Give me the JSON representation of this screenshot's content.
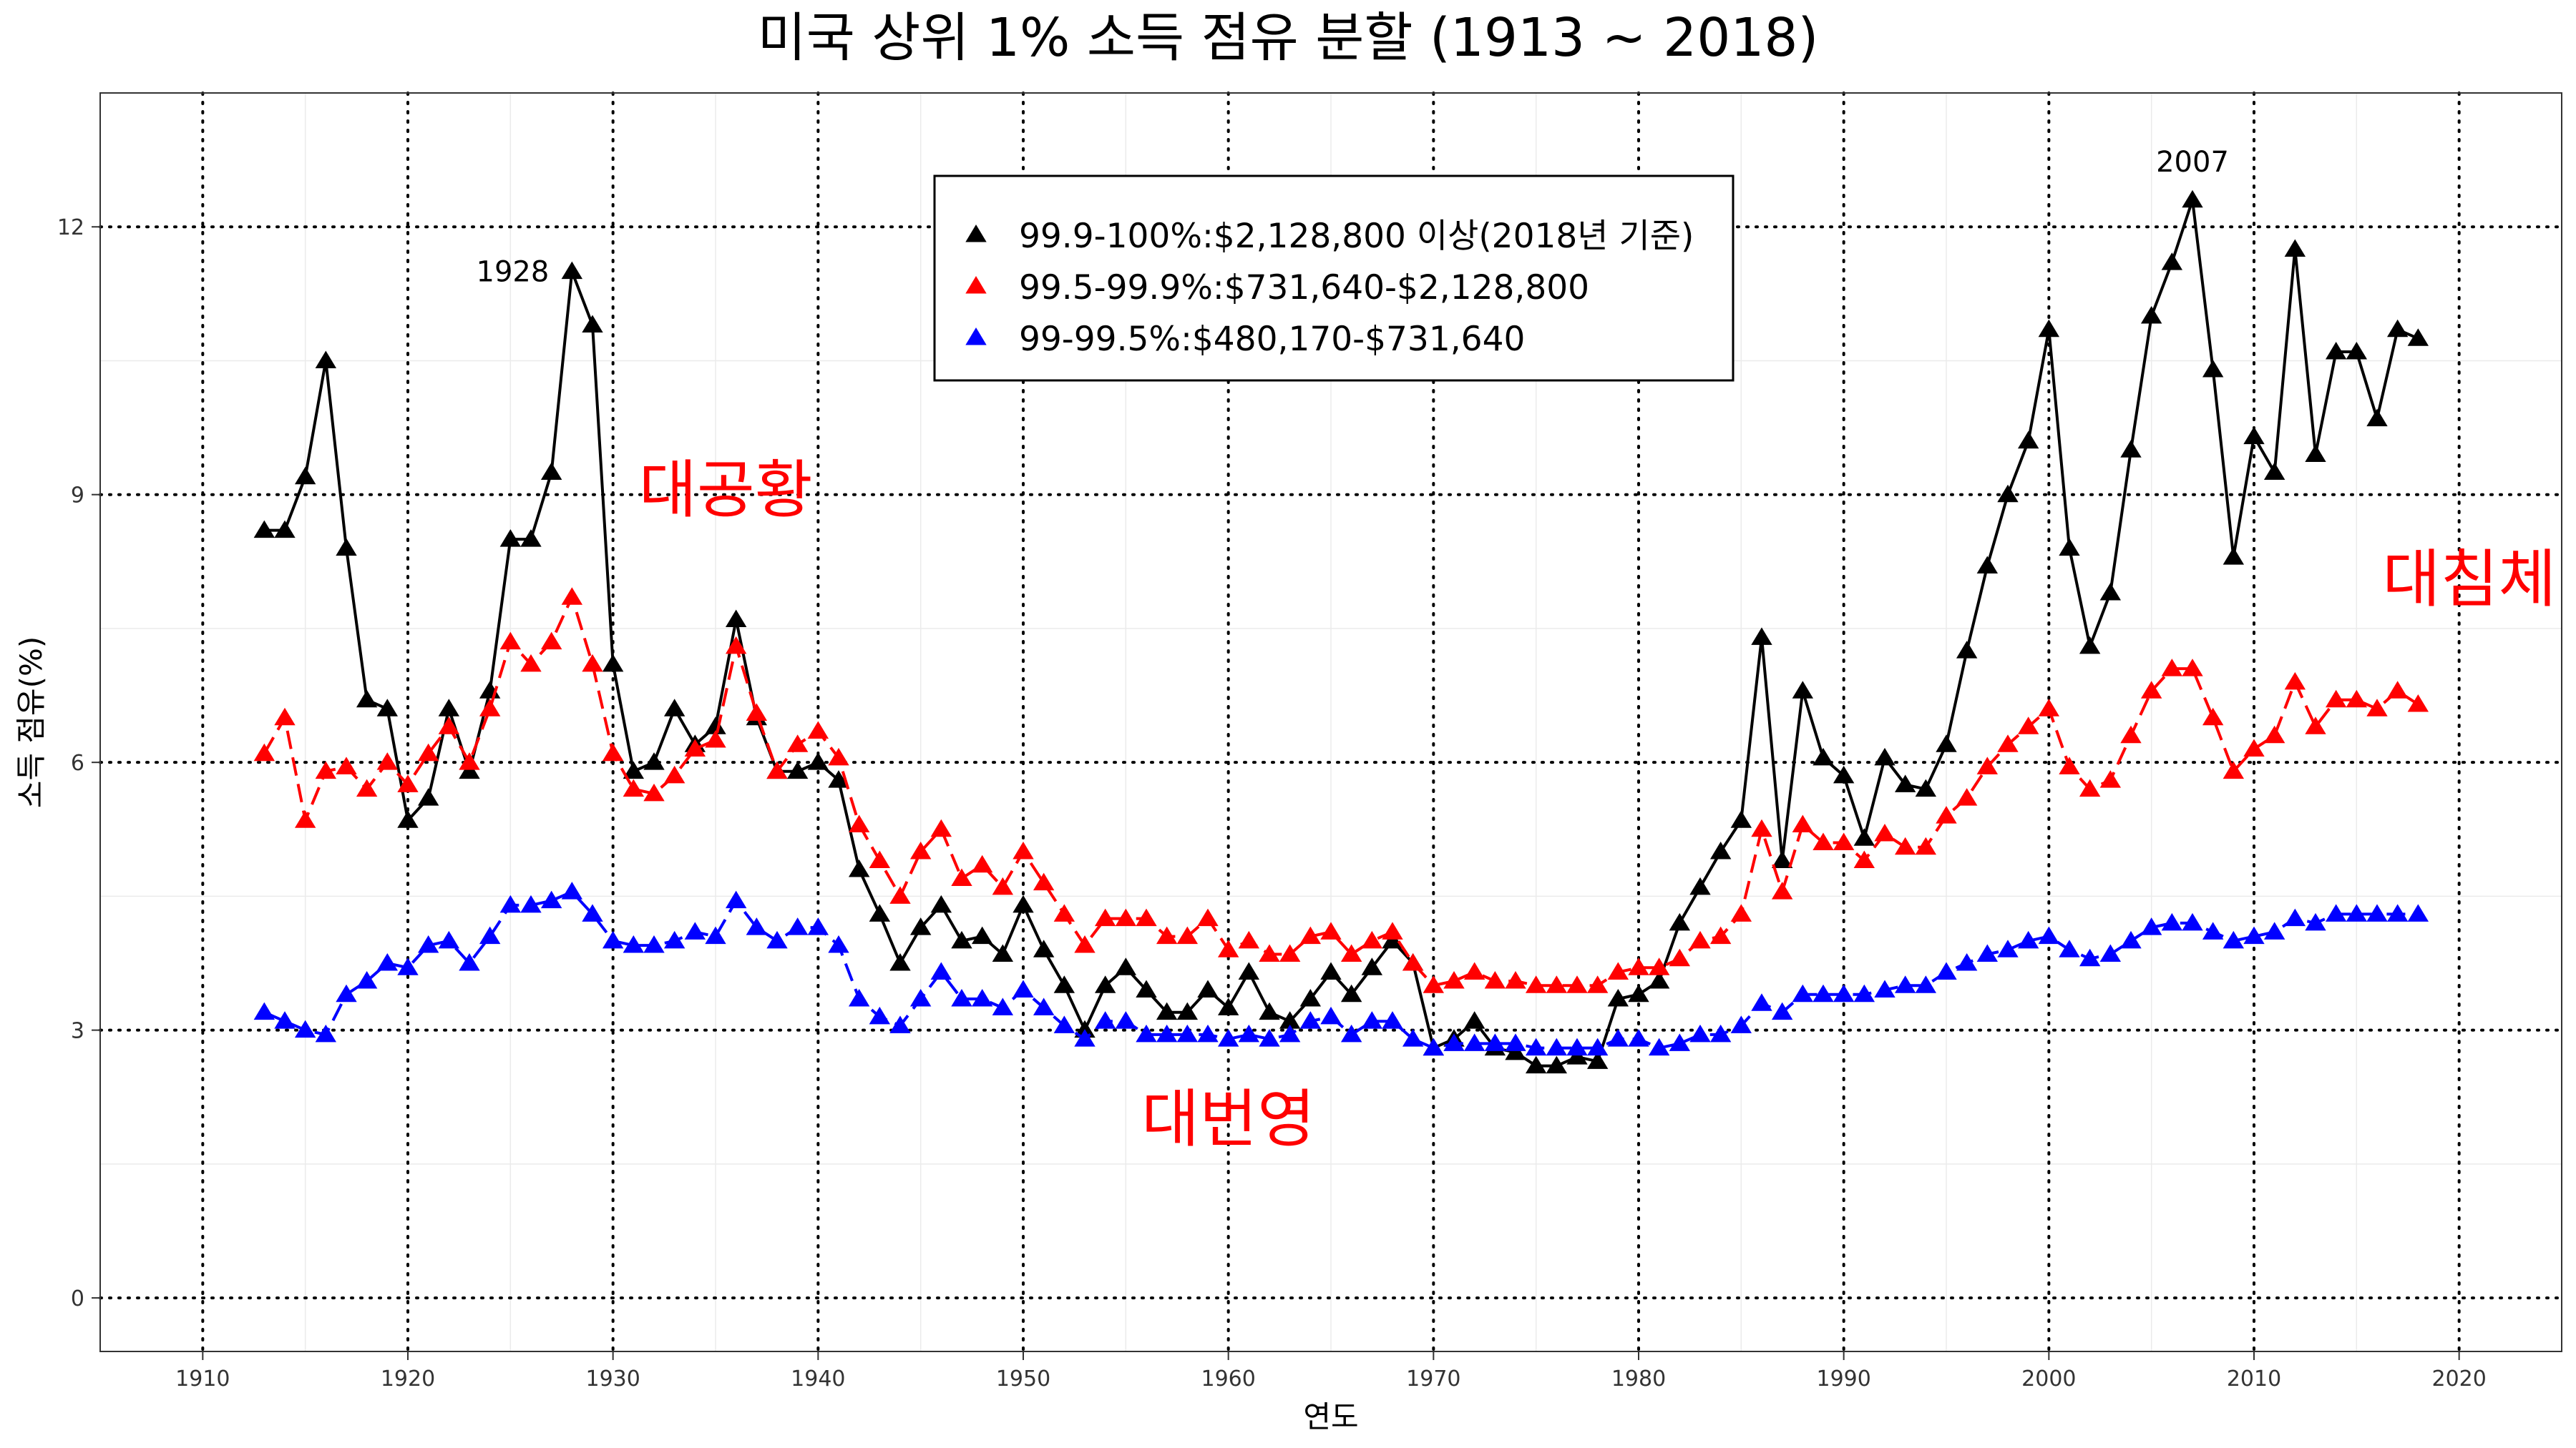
{
  "chart_data": {
    "type": "line",
    "title": "미국 상위 1% 소득 점유 분할 (1913 ~ 2018)",
    "xlabel": "연도",
    "ylabel": "소득 점유(%)",
    "xlim": [
      1905,
      2025
    ],
    "ylim": [
      -0.6,
      13.5
    ],
    "xticks": [
      1910,
      1920,
      1930,
      1940,
      1950,
      1960,
      1970,
      1980,
      1990,
      2000,
      2010,
      2020
    ],
    "yticks": [
      0,
      3,
      6,
      9,
      12
    ],
    "grid": true,
    "legend_position": "top-center",
    "x": [
      1913,
      1914,
      1915,
      1916,
      1917,
      1918,
      1919,
      1920,
      1921,
      1922,
      1923,
      1924,
      1925,
      1926,
      1927,
      1928,
      1929,
      1930,
      1931,
      1932,
      1933,
      1934,
      1935,
      1936,
      1937,
      1938,
      1939,
      1940,
      1941,
      1942,
      1943,
      1944,
      1945,
      1946,
      1947,
      1948,
      1949,
      1950,
      1951,
      1952,
      1953,
      1954,
      1955,
      1956,
      1957,
      1958,
      1959,
      1960,
      1961,
      1962,
      1963,
      1964,
      1965,
      1966,
      1967,
      1968,
      1969,
      1970,
      1971,
      1972,
      1973,
      1974,
      1975,
      1976,
      1977,
      1978,
      1979,
      1980,
      1981,
      1982,
      1983,
      1984,
      1985,
      1986,
      1987,
      1988,
      1989,
      1990,
      1991,
      1992,
      1993,
      1994,
      1995,
      1996,
      1997,
      1998,
      1999,
      2000,
      2001,
      2002,
      2003,
      2004,
      2005,
      2006,
      2007,
      2008,
      2009,
      2010,
      2011,
      2012,
      2013,
      2014,
      2015,
      2016,
      2017,
      2018
    ],
    "series": [
      {
        "name": "99.9-100%:$2,128,800 이상(2018년 기준)",
        "color": "#000000",
        "dash": "solid",
        "values": [
          8.6,
          8.6,
          9.2,
          10.5,
          8.4,
          6.7,
          6.6,
          5.35,
          5.6,
          6.6,
          5.9,
          6.8,
          8.5,
          8.5,
          9.25,
          11.5,
          10.9,
          7.1,
          5.9,
          6.0,
          6.6,
          6.2,
          6.4,
          7.6,
          6.5,
          5.9,
          5.9,
          6.0,
          5.8,
          4.8,
          4.3,
          3.75,
          4.15,
          4.4,
          4.0,
          4.05,
          3.85,
          4.4,
          3.9,
          3.5,
          3.0,
          3.5,
          3.7,
          3.45,
          3.2,
          3.2,
          3.45,
          3.25,
          3.65,
          3.2,
          3.1,
          3.35,
          3.65,
          3.4,
          3.7,
          4.0,
          3.75,
          2.8,
          2.9,
          3.1,
          2.8,
          2.75,
          2.6,
          2.6,
          2.7,
          2.65,
          3.35,
          3.4,
          3.55,
          4.2,
          4.6,
          5.0,
          5.35,
          7.4,
          4.9,
          6.8,
          6.05,
          5.85,
          5.15,
          6.05,
          5.75,
          5.7,
          6.2,
          7.25,
          8.2,
          9.0,
          9.6,
          10.85,
          8.4,
          7.3,
          7.9,
          9.5,
          11.0,
          11.6,
          12.3,
          10.4,
          8.3,
          9.65,
          9.25,
          11.75,
          9.45,
          10.6,
          10.6,
          9.85,
          10.85,
          10.75
        ]
      },
      {
        "name": "99.5-99.9%:$731,640-$2,128,800",
        "color": "#ff0000",
        "dash": "dashed",
        "values": [
          6.1,
          6.5,
          5.35,
          5.9,
          5.95,
          5.7,
          6.0,
          5.75,
          6.1,
          6.4,
          6.0,
          6.6,
          7.35,
          7.1,
          7.35,
          7.85,
          7.1,
          6.1,
          5.7,
          5.65,
          5.85,
          6.15,
          6.25,
          7.3,
          6.55,
          5.9,
          6.2,
          6.35,
          6.05,
          5.3,
          4.9,
          4.5,
          5.0,
          5.25,
          4.7,
          4.85,
          4.6,
          5.0,
          4.65,
          4.3,
          3.95,
          4.25,
          4.25,
          4.25,
          4.05,
          4.05,
          4.25,
          3.9,
          4.0,
          3.85,
          3.85,
          4.05,
          4.1,
          3.85,
          4.0,
          4.1,
          3.75,
          3.5,
          3.55,
          3.65,
          3.55,
          3.55,
          3.5,
          3.5,
          3.5,
          3.5,
          3.65,
          3.7,
          3.7,
          3.8,
          4.0,
          4.05,
          4.3,
          5.25,
          4.55,
          5.3,
          5.1,
          5.1,
          4.9,
          5.2,
          5.05,
          5.05,
          5.4,
          5.6,
          5.95,
          6.2,
          6.4,
          6.6,
          5.95,
          5.7,
          5.8,
          6.3,
          6.8,
          7.05,
          7.05,
          6.5,
          5.9,
          6.15,
          6.3,
          6.9,
          6.4,
          6.7,
          6.7,
          6.6,
          6.8,
          6.65
        ]
      },
      {
        "name": "99-99.5%:$480,170-$731,640",
        "color": "#0000ff",
        "dash": "dashed",
        "values": [
          3.2,
          3.1,
          3.0,
          2.95,
          3.4,
          3.55,
          3.75,
          3.7,
          3.95,
          4.0,
          3.75,
          4.05,
          4.4,
          4.4,
          4.45,
          4.55,
          4.3,
          4.0,
          3.95,
          3.95,
          4.0,
          4.1,
          4.05,
          4.45,
          4.15,
          4.0,
          4.15,
          4.15,
          3.95,
          3.35,
          3.15,
          3.05,
          3.35,
          3.65,
          3.35,
          3.35,
          3.25,
          3.45,
          3.25,
          3.05,
          2.9,
          3.1,
          3.1,
          2.95,
          2.95,
          2.95,
          2.95,
          2.9,
          2.95,
          2.9,
          2.95,
          3.1,
          3.15,
          2.95,
          3.1,
          3.1,
          2.9,
          2.8,
          2.85,
          2.85,
          2.85,
          2.85,
          2.8,
          2.8,
          2.8,
          2.8,
          2.9,
          2.9,
          2.8,
          2.85,
          2.95,
          2.95,
          3.05,
          3.3,
          3.2,
          3.4,
          3.4,
          3.4,
          3.4,
          3.45,
          3.5,
          3.5,
          3.65,
          3.75,
          3.85,
          3.9,
          4.0,
          4.05,
          3.9,
          3.8,
          3.85,
          4.0,
          4.15,
          4.2,
          4.2,
          4.1,
          4.0,
          4.05,
          4.1,
          4.25,
          4.2,
          4.3,
          4.3,
          4.3,
          4.3,
          4.3
        ]
      }
    ],
    "annotations": [
      {
        "text": "1928",
        "x": 1928,
        "y": 11.5,
        "side": "left"
      },
      {
        "text": "2007",
        "x": 2007,
        "y": 12.3,
        "side": "top"
      },
      {
        "text": "대공황",
        "x": 1935.5,
        "y": 9.0,
        "color": "#ff0000"
      },
      {
        "text": "대번영",
        "x": 1960,
        "y": 1.95,
        "color": "#ff0000"
      },
      {
        "text": "대침체",
        "x": 2020.5,
        "y": 8.0,
        "color": "#ff0000"
      }
    ]
  }
}
